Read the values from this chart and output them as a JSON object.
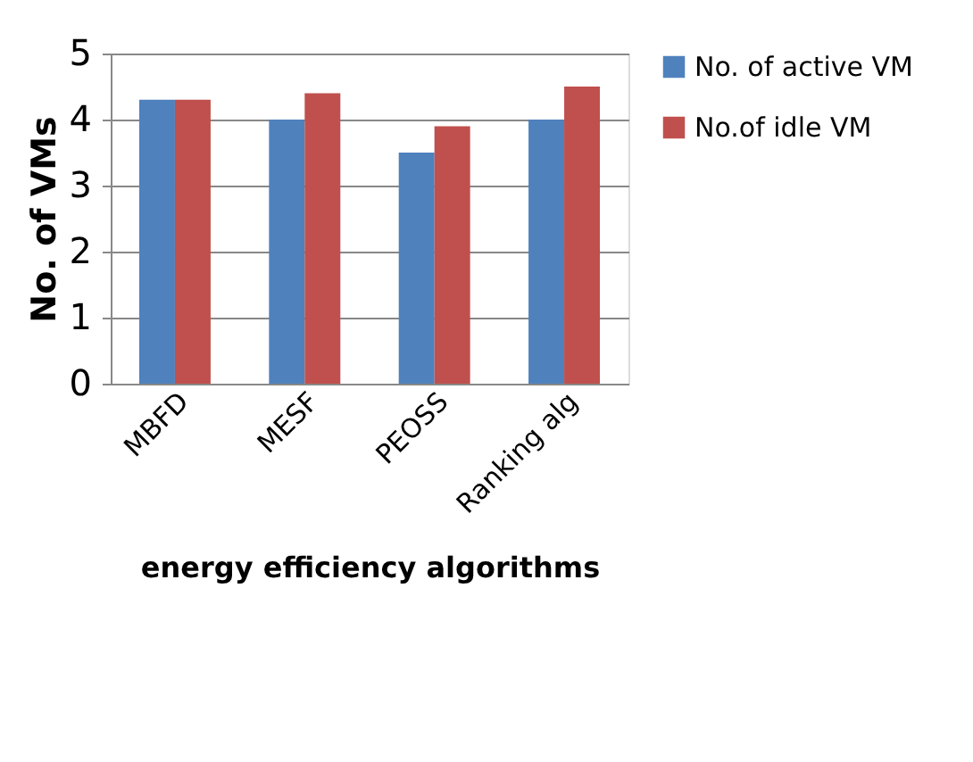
{
  "chart_data": {
    "type": "bar",
    "xlabel": "energy efficiency algorithms",
    "ylabel": "No. of VMs",
    "categories": [
      "MBFD",
      "MESF",
      "PEOSS",
      "Ranking alg"
    ],
    "series": [
      {
        "name": "No. of active VM",
        "color": "#4f81bd",
        "values": [
          4.3,
          4,
          3.5,
          4
        ]
      },
      {
        "name": "No.of idle VM",
        "color": "#c0504d",
        "values": [
          4.3,
          4.4,
          3.9,
          4.5
        ]
      }
    ],
    "ylim": [
      0,
      5
    ],
    "yticks": [
      0,
      1,
      2,
      3,
      4,
      5
    ],
    "grid": "y",
    "legend": "right"
  }
}
